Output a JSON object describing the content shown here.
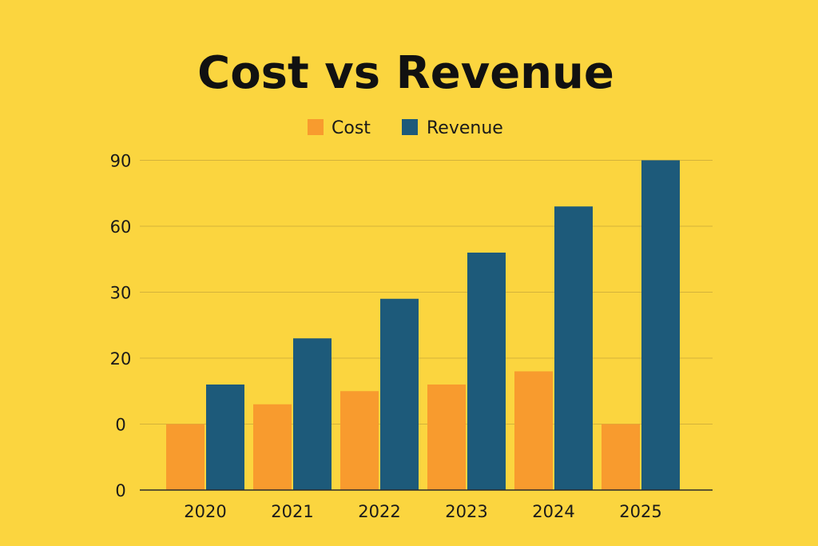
{
  "chart_data": {
    "type": "bar",
    "title": "Cost vs Revenue",
    "xlabel": "",
    "ylabel": "",
    "categories": [
      "2020",
      "2021",
      "2022",
      "2023",
      "2024",
      "2025"
    ],
    "y_tick_labels": [
      "0",
      "0",
      "20",
      "30",
      "60",
      "90"
    ],
    "grid": true,
    "legend_position": "top-center",
    "series": [
      {
        "name": "Cost",
        "color": "#F89B2E",
        "values": [
          10,
          13,
          15,
          16,
          18,
          10
        ],
        "note_values_in_tick_steps": true
      },
      {
        "name": "Revenue",
        "color": "#1D5A7A",
        "values": [
          16,
          23,
          29,
          36,
          43,
          50
        ],
        "note_values_in_tick_steps": true
      }
    ]
  }
}
